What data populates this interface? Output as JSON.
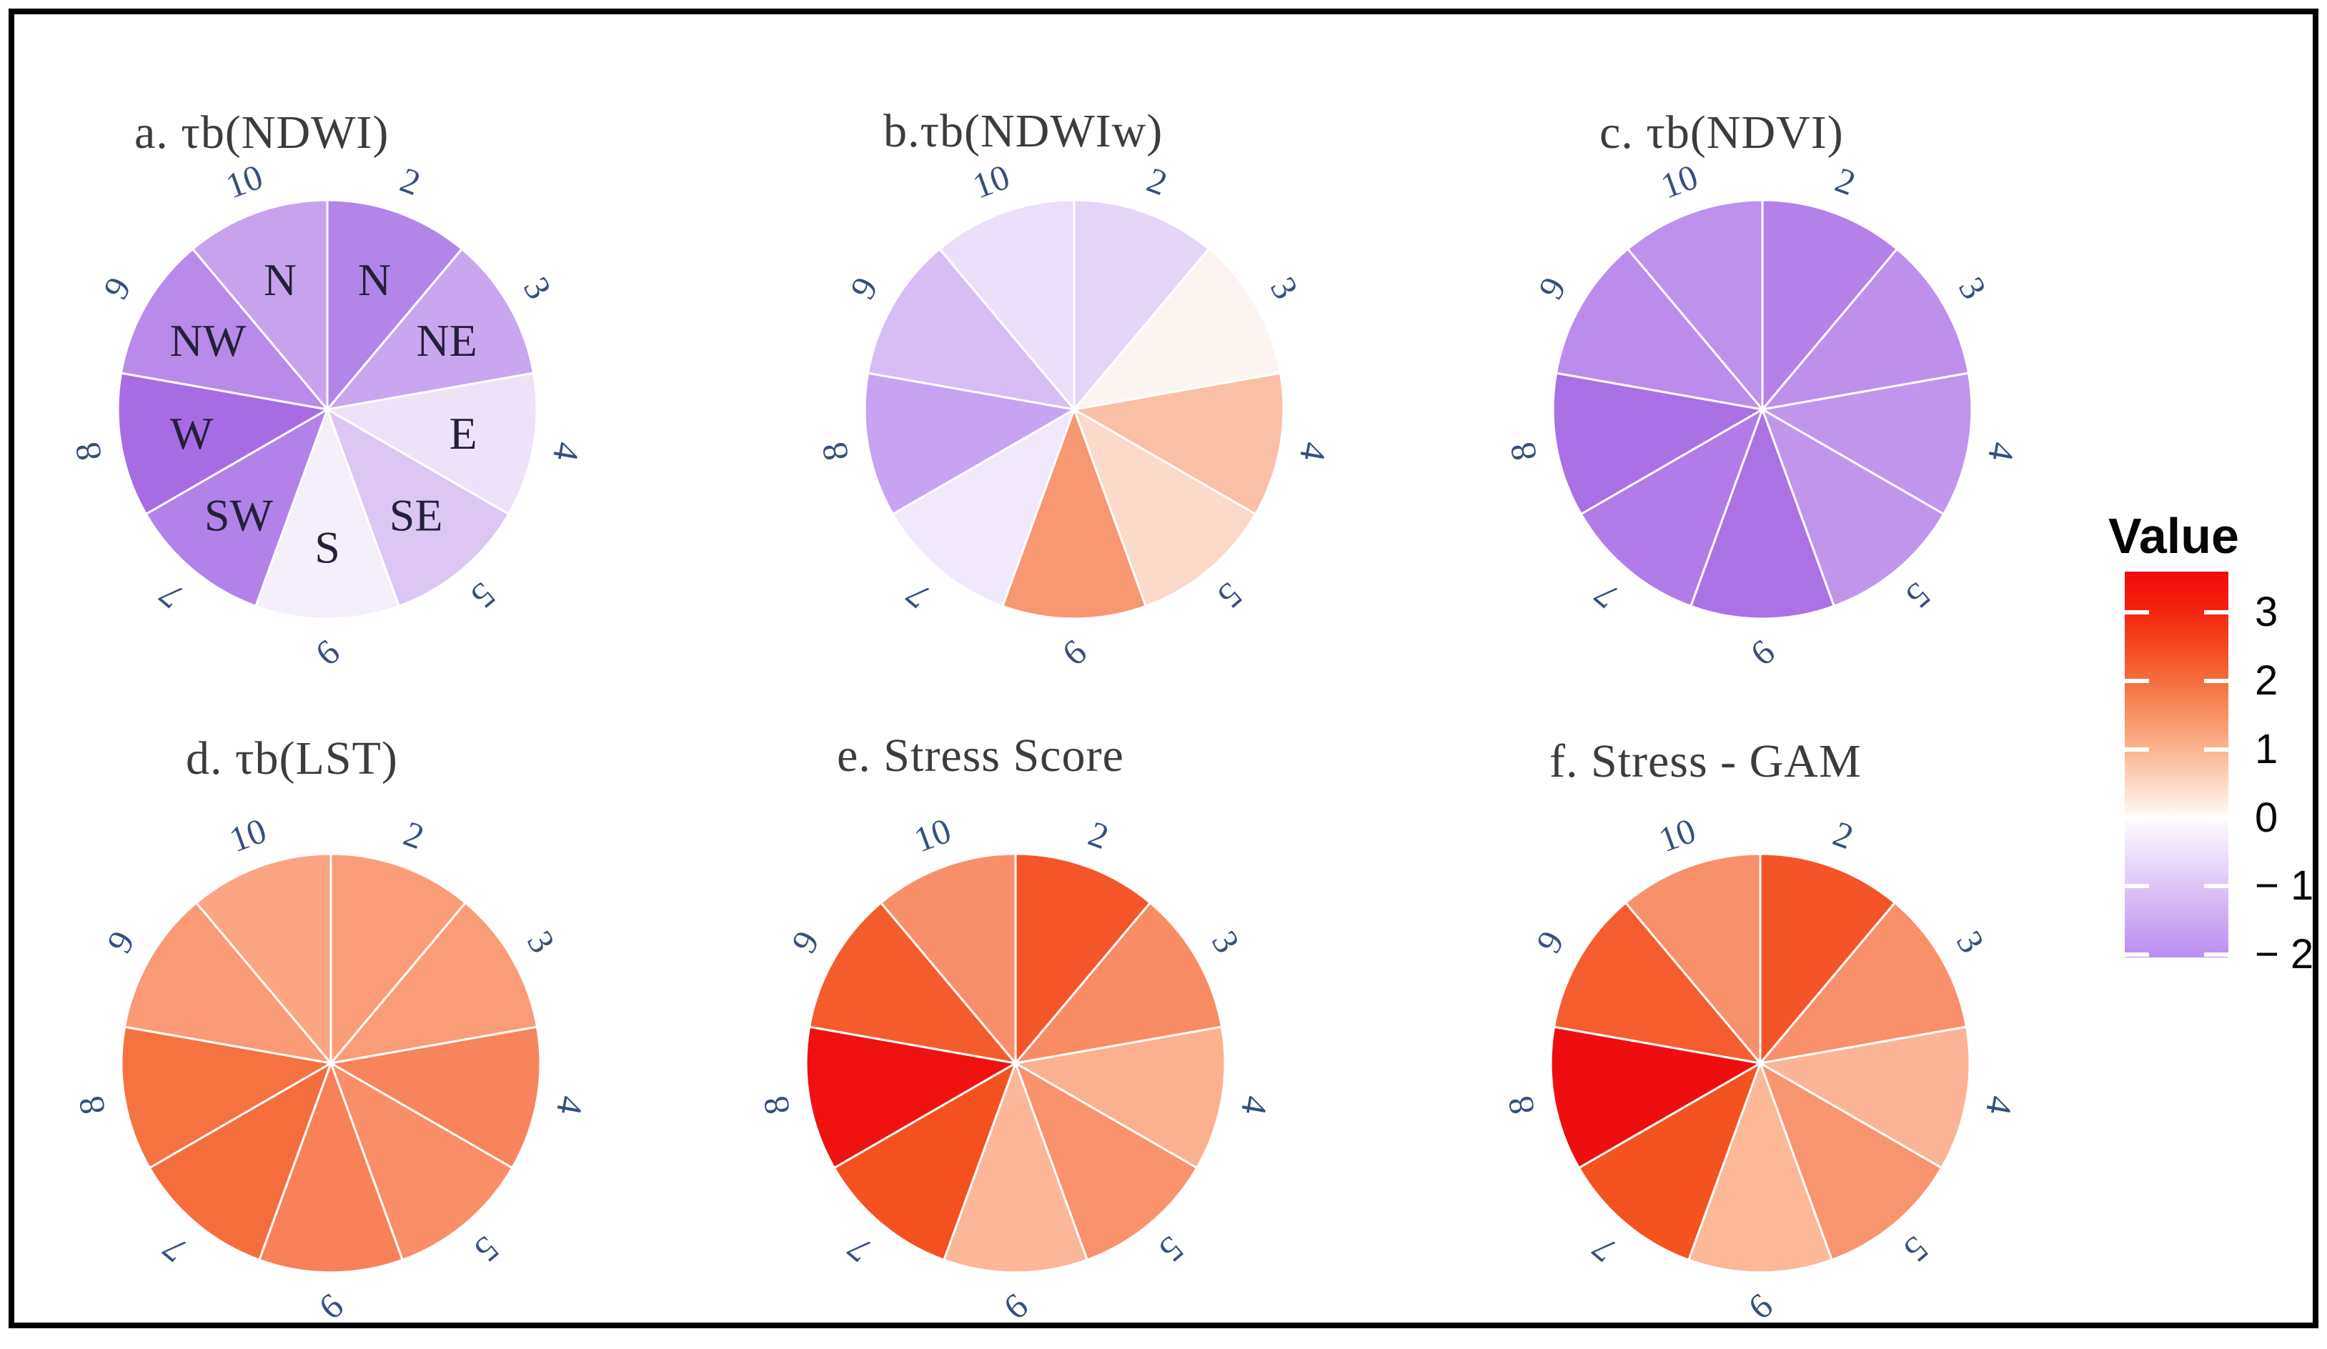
{
  "figure": {
    "background": "#ffffff",
    "border_color": "#000000"
  },
  "legend": {
    "title": "Value",
    "value_range_top": 3.6,
    "value_range_bottom": -2.04,
    "ticks": [
      {
        "label": "3",
        "value": 3
      },
      {
        "label": "2",
        "value": 2
      },
      {
        "label": "1",
        "value": 1
      },
      {
        "label": "0",
        "value": 0
      },
      {
        "label": "− 1",
        "value": -1
      },
      {
        "label": "− 2",
        "value": -2
      }
    ],
    "gradient_stops": [
      {
        "t": 0.0,
        "color": "#f10c0b"
      },
      {
        "t": 0.106,
        "color": "#f32511"
      },
      {
        "t": 0.195,
        "color": "#f44a21"
      },
      {
        "t": 0.284,
        "color": "#f56e3e"
      },
      {
        "t": 0.372,
        "color": "#f89264"
      },
      {
        "t": 0.461,
        "color": "#fab490"
      },
      {
        "t": 0.55,
        "color": "#fdd8c3"
      },
      {
        "t": 0.603,
        "color": "#feeee3"
      },
      {
        "t": 0.638,
        "color": "#fffdfd"
      },
      {
        "t": 0.691,
        "color": "#f5ecfc"
      },
      {
        "t": 0.816,
        "color": "#ddc5f6"
      },
      {
        "t": 0.904,
        "color": "#ccaaf3"
      },
      {
        "t": 1.0,
        "color": "#ba8df0"
      }
    ]
  },
  "chart_data": [
    {
      "id": "a",
      "type": "pie",
      "title": "a. τb(NDWI)",
      "categories": [
        "2",
        "3",
        "4",
        "5",
        "6",
        "7",
        "8",
        "9",
        "10"
      ],
      "direction_labels": [
        "N",
        "NE",
        "E",
        "SE",
        "S",
        "SW",
        "W",
        "NW",
        "N"
      ],
      "colors": [
        "#b286e9",
        "#c9a6f0",
        "#eee2f9",
        "#dcc7f4",
        "#f5eefb",
        "#b183e9",
        "#a76ce4",
        "#b88ae9",
        "#c7a3ee"
      ],
      "values_estimated": [
        -1.75,
        -1.25,
        -0.4,
        -0.85,
        -0.25,
        -1.8,
        -2.0,
        -1.7,
        -1.3
      ],
      "orientation": "sectors start at 12 o'clock, clockwise, 40° each"
    },
    {
      "id": "b",
      "type": "pie",
      "title": "b.τb(NDWIw)",
      "categories": [
        "2",
        "3",
        "4",
        "5",
        "6",
        "7",
        "8",
        "9",
        "10"
      ],
      "direction_labels": null,
      "colors": [
        "#e5d6f8",
        "#fbf4f1",
        "#f9c0a5",
        "#fcd9c8",
        "#f79873",
        "#f1e8fb",
        "#c6a4f1",
        "#d6bdf5",
        "#ecdffa"
      ],
      "values_estimated": [
        -0.7,
        0.15,
        0.85,
        0.45,
        1.4,
        -0.35,
        -1.3,
        -1.0,
        -0.5
      ],
      "orientation": "sectors start at 12 o'clock, clockwise, 40° each"
    },
    {
      "id": "c",
      "type": "pie",
      "title": "c. τb(NDVI)",
      "categories": [
        "2",
        "3",
        "4",
        "5",
        "6",
        "7",
        "8",
        "9",
        "10"
      ],
      "direction_labels": null,
      "colors": [
        "#b481e9",
        "#bd90ec",
        "#c096ed",
        "#c096ed",
        "#ab72e5",
        "#b17ce8",
        "#aa70e5",
        "#ba8ceb",
        "#bd92ec"
      ],
      "values_estimated": [
        -1.8,
        -1.6,
        -1.5,
        -1.5,
        -2.0,
        -1.85,
        -2.0,
        -1.65,
        -1.55
      ],
      "orientation": "sectors start at 12 o'clock, clockwise, 40° each"
    },
    {
      "id": "d",
      "type": "pie",
      "title": "d. τb(LST)",
      "categories": [
        "2",
        "3",
        "4",
        "5",
        "6",
        "7",
        "8",
        "9",
        "10"
      ],
      "direction_labels": null,
      "colors": [
        "#fb9c78",
        "#fa9c78",
        "#f8845d",
        "#f98e68",
        "#f8815a",
        "#f66d3c",
        "#f67241",
        "#fa9a76",
        "#fba583"
      ],
      "values_estimated": [
        1.35,
        1.35,
        1.75,
        1.55,
        1.8,
        2.0,
        1.95,
        1.4,
        1.2
      ],
      "orientation": "sectors start at 12 o'clock, clockwise, 40° each"
    },
    {
      "id": "e",
      "type": "pie",
      "title": "e. Stress Score",
      "categories": [
        "2",
        "3",
        "4",
        "5",
        "6",
        "7",
        "8",
        "9",
        "10"
      ],
      "direction_labels": null,
      "colors": [
        "#f4562a",
        "#f98b65",
        "#fbb08f",
        "#f9926d",
        "#fcb698",
        "#f4511f",
        "#f01210",
        "#f55c2c",
        "#f98f6a"
      ],
      "values_estimated": [
        2.45,
        1.6,
        1.05,
        1.5,
        0.95,
        2.5,
        3.5,
        2.4,
        1.55
      ],
      "orientation": "sectors start at 12 o'clock, clockwise, 40° each"
    },
    {
      "id": "f",
      "type": "pie",
      "title": "f. Stress - GAM",
      "categories": [
        "2",
        "3",
        "4",
        "5",
        "6",
        "7",
        "8",
        "9",
        "10"
      ],
      "direction_labels": null,
      "colors": [
        "#f45427",
        "#f98f6b",
        "#fbb495",
        "#f99471",
        "#fcb897",
        "#f4521f",
        "#ee0e10",
        "#f55d2e",
        "#f9906c"
      ],
      "values_estimated": [
        2.45,
        1.5,
        1.0,
        1.45,
        0.95,
        2.5,
        3.55,
        2.4,
        1.5
      ],
      "orientation": "sectors start at 12 o'clock, clockwise, 40° each"
    }
  ]
}
